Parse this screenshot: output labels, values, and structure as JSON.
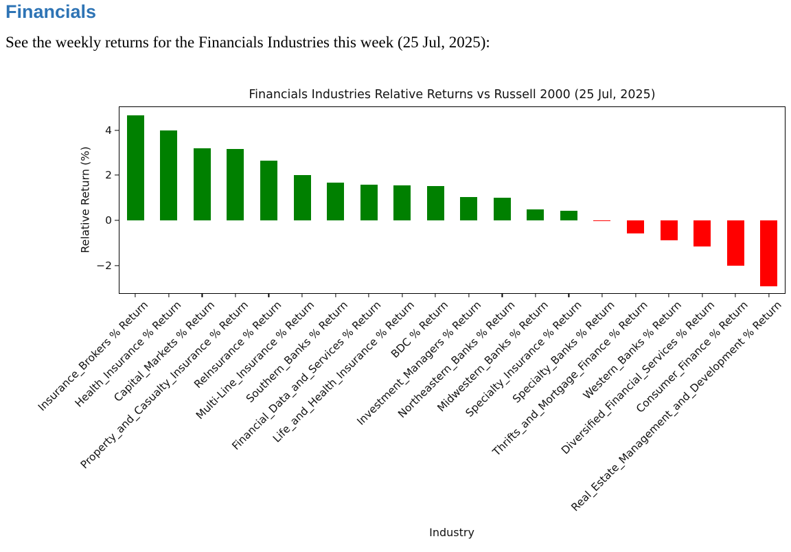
{
  "page": {
    "heading": "Financials",
    "intro": "See the weekly returns for the Financials Industries this week (25 Jul, 2025):"
  },
  "colors": {
    "heading_blue": "#2E74B5",
    "positive_green": "#008000",
    "negative_red": "#ff0000",
    "axis_black": "#000000"
  },
  "chart_data": {
    "type": "bar",
    "title": "Financials Industries Relative Returns vs Russell 2000 (25 Jul, 2025)",
    "xlabel": "Industry",
    "ylabel": "Relative Return (%)",
    "categories": [
      "Insurance_Brokers % Return",
      "Health_Insurance % Return",
      "Capital_Markets % Return",
      "Property_and_Casualty_Insurance % Return",
      "ReInsurance % Return",
      "Multi-Line_Insurance % Return",
      "Southern_Banks % Return",
      "Financial_Data_and_Services % Return",
      "Life_and_Health_Insurance % Return",
      "BDC % Return",
      "Investment_Managers % Return",
      "Northeastern_Banks % Return",
      "Midwestern_Banks % Return",
      "Specialty_Insurance % Return",
      "Specialty_Banks % Return",
      "Thrifts_and_Mortgage_Finance % Return",
      "Western_Banks % Return",
      "Diversified_Financial_Services % Return",
      "Consumer_Finance % Return",
      "Real_Estate_Management_and_Development % Return"
    ],
    "values": [
      4.65,
      4.0,
      3.2,
      3.17,
      2.65,
      2.01,
      1.68,
      1.58,
      1.56,
      1.51,
      1.04,
      1.0,
      0.5,
      0.44,
      -0.03,
      -0.58,
      -0.88,
      -1.16,
      -2.02,
      -2.94
    ],
    "positive_color": "#008000",
    "negative_color": "#ff0000",
    "ylim": [
      -3.27,
      5.07
    ],
    "yticks": [
      -2,
      0,
      2,
      4
    ],
    "xtick_rotation_deg": 45,
    "grid": false,
    "legend": false
  }
}
